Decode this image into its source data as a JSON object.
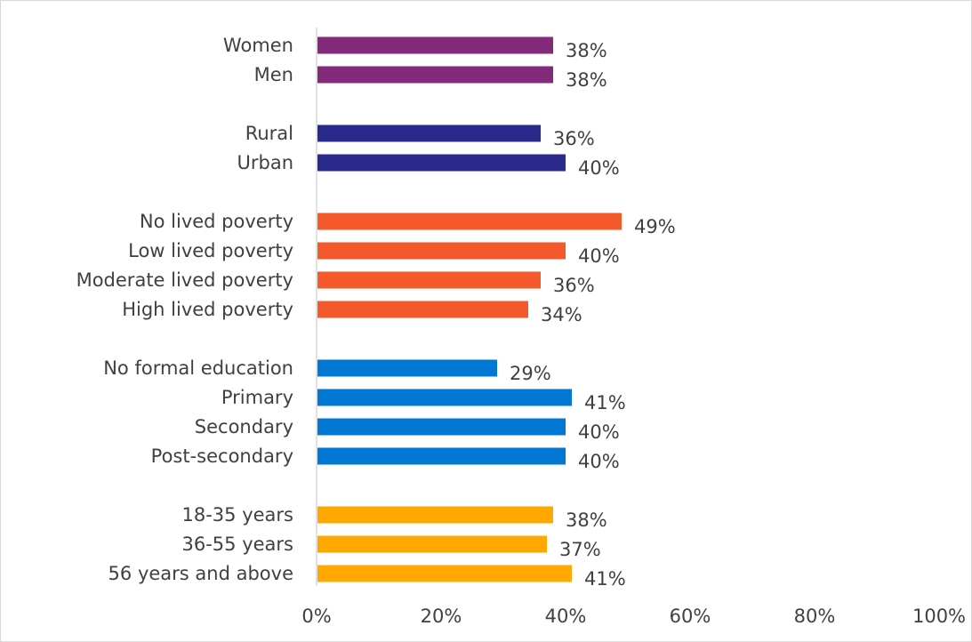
{
  "chart_data": {
    "type": "bar",
    "orientation": "horizontal",
    "xlim": [
      0,
      100
    ],
    "grid": false,
    "legend": "none",
    "value_suffix": "%",
    "x_ticks": [
      "0%",
      "20%",
      "40%",
      "60%",
      "80%",
      "100%"
    ],
    "x_tick_values": [
      0,
      20,
      40,
      60,
      80,
      100
    ],
    "groups": [
      {
        "color": "#832a7a",
        "categories": [
          "Women",
          "Men"
        ],
        "values": [
          38,
          38
        ],
        "labels": [
          "38%",
          "38%"
        ]
      },
      {
        "color": "#2a2a8c",
        "categories": [
          "Rural",
          "Urban"
        ],
        "values": [
          36,
          40
        ],
        "labels": [
          "36%",
          "40%"
        ]
      },
      {
        "color": "#f4592b",
        "categories": [
          "No lived poverty",
          "Low lived poverty",
          "Moderate lived poverty",
          "High lived poverty"
        ],
        "values": [
          49,
          40,
          36,
          34
        ],
        "labels": [
          "49%",
          "40%",
          "36%",
          "34%"
        ]
      },
      {
        "color": "#0078d4",
        "categories": [
          "No formal education",
          "Primary",
          "Secondary",
          "Post-secondary"
        ],
        "values": [
          29,
          41,
          40,
          40
        ],
        "labels": [
          "29%",
          "41%",
          "40%",
          "40%"
        ]
      },
      {
        "color": "#ffa800",
        "categories": [
          "18-35 years",
          "36-55 years",
          "56 years and above"
        ],
        "values": [
          38,
          37,
          41
        ],
        "labels": [
          "38%",
          "37%",
          "41%"
        ]
      }
    ]
  }
}
